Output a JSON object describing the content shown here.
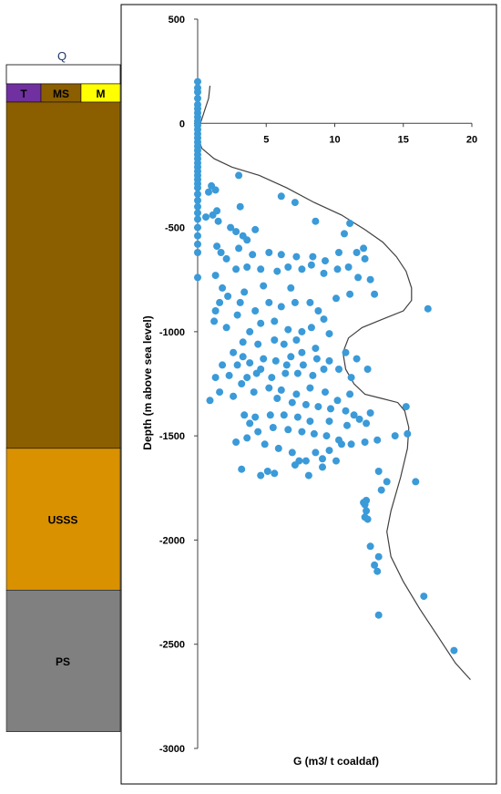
{
  "column": {
    "top_label": "Q",
    "thin_units": [
      {
        "label": "T",
        "color": "#7030A0"
      },
      {
        "label": "MS",
        "color": "#8B5E00"
      },
      {
        "label": "M",
        "color": "#FFFF00"
      }
    ],
    "units": [
      {
        "label": "",
        "color": "#8B5E00",
        "from_depth": 100,
        "to_depth": -1560
      },
      {
        "label": "USSS",
        "color": "#D99100",
        "from_depth": -1560,
        "to_depth": -2240
      },
      {
        "label": "PS",
        "color": "#808080",
        "from_depth": -2240,
        "to_depth": -2920
      }
    ]
  },
  "chart_data": {
    "type": "scatter",
    "title": "",
    "xlabel": "G (m3/ t coaldaf)",
    "ylabel": "Depth (m above sea level)",
    "xlim": [
      0,
      20
    ],
    "ylim": [
      -3000,
      500
    ],
    "x_ticks": [
      0,
      5,
      10,
      15,
      20
    ],
    "y_ticks": [
      500,
      0,
      -500,
      -1000,
      -1500,
      -2000,
      -2500,
      -3000
    ],
    "grid": false,
    "legend": "none",
    "marker_color": "#3B9AD8",
    "line_color": "#404040",
    "points": [
      [
        0,
        200
      ],
      [
        0,
        170
      ],
      [
        0,
        150
      ],
      [
        0,
        120
      ],
      [
        0,
        90
      ],
      [
        0,
        70
      ],
      [
        0,
        50
      ],
      [
        0,
        30
      ],
      [
        0,
        10
      ],
      [
        0,
        -10
      ],
      [
        0,
        -30
      ],
      [
        0,
        -50
      ],
      [
        0,
        -70
      ],
      [
        0,
        -90
      ],
      [
        0,
        -110
      ],
      [
        0,
        -130
      ],
      [
        0,
        -150
      ],
      [
        0,
        -170
      ],
      [
        0,
        -190
      ],
      [
        0,
        -210
      ],
      [
        0,
        -230
      ],
      [
        0,
        -250
      ],
      [
        0,
        -270
      ],
      [
        0,
        -290
      ],
      [
        0,
        -310
      ],
      [
        0,
        -340
      ],
      [
        0,
        -370
      ],
      [
        0,
        -400
      ],
      [
        0,
        -430
      ],
      [
        0,
        -460
      ],
      [
        0,
        -500
      ],
      [
        0,
        -540
      ],
      [
        0,
        -580
      ],
      [
        0,
        -620
      ],
      [
        0,
        -740
      ],
      [
        3,
        -250
      ],
      [
        6.1,
        -350
      ],
      [
        7.1,
        -380
      ],
      [
        8.6,
        -470
      ],
      [
        11.1,
        -480
      ],
      [
        10.7,
        -530
      ],
      [
        12.1,
        -600
      ],
      [
        11.6,
        -620
      ],
      [
        16.8,
        -890
      ],
      [
        15.2,
        -1360
      ],
      [
        15.3,
        -1490
      ],
      [
        14.4,
        -1500
      ],
      [
        13.2,
        -1670
      ],
      [
        13.8,
        -1720
      ],
      [
        15.9,
        -1720
      ],
      [
        13.4,
        -1760
      ],
      [
        12.3,
        -1810
      ],
      [
        12.1,
        -1820
      ],
      [
        12.2,
        -1830
      ],
      [
        12.3,
        -1860
      ],
      [
        12.2,
        -1890
      ],
      [
        12.4,
        -1900
      ],
      [
        12.6,
        -2030
      ],
      [
        13.2,
        -2080
      ],
      [
        12.9,
        -2120
      ],
      [
        13.1,
        -2150
      ],
      [
        16.5,
        -2270
      ],
      [
        13.2,
        -2360
      ],
      [
        18.7,
        -2530
      ],
      [
        1,
        -300
      ],
      [
        1.3,
        -320
      ],
      [
        0.8,
        -330
      ],
      [
        1.4,
        -420
      ],
      [
        1.1,
        -440
      ],
      [
        0.6,
        -450
      ],
      [
        1.5,
        -470
      ],
      [
        3.1,
        -400
      ],
      [
        2.4,
        -500
      ],
      [
        2.8,
        -520
      ],
      [
        3.3,
        -540
      ],
      [
        4.2,
        -510
      ],
      [
        3.6,
        -560
      ],
      [
        1.4,
        -590
      ],
      [
        1.7,
        -620
      ],
      [
        2.1,
        -650
      ],
      [
        3,
        -600
      ],
      [
        4,
        -630
      ],
      [
        5.2,
        -620
      ],
      [
        6.1,
        -630
      ],
      [
        7.2,
        -640
      ],
      [
        8.4,
        -640
      ],
      [
        9.3,
        -660
      ],
      [
        10.3,
        -620
      ],
      [
        12.2,
        -650
      ],
      [
        11.7,
        -740
      ],
      [
        12.6,
        -750
      ],
      [
        11,
        -690
      ],
      [
        10.2,
        -700
      ],
      [
        9.2,
        -720
      ],
      [
        8.3,
        -680
      ],
      [
        7.6,
        -700
      ],
      [
        6.6,
        -690
      ],
      [
        5.8,
        -710
      ],
      [
        4.6,
        -700
      ],
      [
        3.6,
        -690
      ],
      [
        2.8,
        -700
      ],
      [
        1.3,
        -730
      ],
      [
        1.8,
        -790
      ],
      [
        2.2,
        -830
      ],
      [
        1.6,
        -860
      ],
      [
        1.3,
        -900
      ],
      [
        1.2,
        -950
      ],
      [
        2.1,
        -980
      ],
      [
        2.9,
        -920
      ],
      [
        3.1,
        -860
      ],
      [
        4.2,
        -900
      ],
      [
        3.4,
        -810
      ],
      [
        4.8,
        -780
      ],
      [
        5.2,
        -860
      ],
      [
        6.1,
        -880
      ],
      [
        6.8,
        -790
      ],
      [
        7.1,
        -860
      ],
      [
        8.2,
        -860
      ],
      [
        8.8,
        -900
      ],
      [
        9.2,
        -940
      ],
      [
        10.1,
        -840
      ],
      [
        11.1,
        -820
      ],
      [
        12.9,
        -820
      ],
      [
        10.8,
        -1100
      ],
      [
        11.6,
        -1130
      ],
      [
        10.3,
        -1180
      ],
      [
        11.2,
        -1220
      ],
      [
        12.4,
        -1180
      ],
      [
        11.1,
        -1300
      ],
      [
        10.2,
        -1330
      ],
      [
        9.3,
        -1290
      ],
      [
        8.2,
        -1270
      ],
      [
        7.2,
        -1300
      ],
      [
        6.1,
        -1280
      ],
      [
        5.2,
        -1270
      ],
      [
        4.1,
        -1290
      ],
      [
        3.2,
        -1250
      ],
      [
        2.6,
        -1310
      ],
      [
        1.6,
        -1290
      ],
      [
        0.9,
        -1330
      ],
      [
        1.3,
        -1220
      ],
      [
        1.8,
        -1160
      ],
      [
        2.6,
        -1100
      ],
      [
        3.3,
        -1050
      ],
      [
        3.8,
        -1000
      ],
      [
        4.6,
        -960
      ],
      [
        5.6,
        -950
      ],
      [
        6.6,
        -990
      ],
      [
        7.6,
        -1000
      ],
      [
        8.3,
        -980
      ],
      [
        9.6,
        -1010
      ],
      [
        8.6,
        -1080
      ],
      [
        7.6,
        -1100
      ],
      [
        6.8,
        -1120
      ],
      [
        5.7,
        -1140
      ],
      [
        4.8,
        -1130
      ],
      [
        3.8,
        -1150
      ],
      [
        2.9,
        -1160
      ],
      [
        4.3,
        -1200
      ],
      [
        5.4,
        -1220
      ],
      [
        6.4,
        -1200
      ],
      [
        7.3,
        -1200
      ],
      [
        8.4,
        -1210
      ],
      [
        9.2,
        -1180
      ],
      [
        9.6,
        -1140
      ],
      [
        5.6,
        -1040
      ],
      [
        6.3,
        -1060
      ],
      [
        7.2,
        -1040
      ],
      [
        4.4,
        -1060
      ],
      [
        3.3,
        -1120
      ],
      [
        4.6,
        -1180
      ],
      [
        6.5,
        -1160
      ],
      [
        8.7,
        -1130
      ],
      [
        7.7,
        -1160
      ],
      [
        2.3,
        -1210
      ],
      [
        3.6,
        -1220
      ],
      [
        5.8,
        -1320
      ],
      [
        6.9,
        -1340
      ],
      [
        7.9,
        -1350
      ],
      [
        8.8,
        -1360
      ],
      [
        9.7,
        -1370
      ],
      [
        10.8,
        -1380
      ],
      [
        11.4,
        -1400
      ],
      [
        12.6,
        -1390
      ],
      [
        11.8,
        -1420
      ],
      [
        12.3,
        -1440
      ],
      [
        10.9,
        -1450
      ],
      [
        9.6,
        -1430
      ],
      [
        8.2,
        -1430
      ],
      [
        7.3,
        -1410
      ],
      [
        6.3,
        -1400
      ],
      [
        5.3,
        -1400
      ],
      [
        4.2,
        -1410
      ],
      [
        3.4,
        -1400
      ],
      [
        3.8,
        -1440
      ],
      [
        4.4,
        -1480
      ],
      [
        5.5,
        -1460
      ],
      [
        6.6,
        -1470
      ],
      [
        7.6,
        -1480
      ],
      [
        8.5,
        -1490
      ],
      [
        9.4,
        -1500
      ],
      [
        10.3,
        -1520
      ],
      [
        11.2,
        -1540
      ],
      [
        12.2,
        -1530
      ],
      [
        13.1,
        -1520
      ],
      [
        9.6,
        -1570
      ],
      [
        9.1,
        -1610
      ],
      [
        10.1,
        -1620
      ],
      [
        7.9,
        -1620
      ],
      [
        7.1,
        -1640
      ],
      [
        5.6,
        -1680
      ],
      [
        5.1,
        -1670
      ],
      [
        4.6,
        -1690
      ],
      [
        3.2,
        -1660
      ],
      [
        2.8,
        -1530
      ],
      [
        3.6,
        -1510
      ],
      [
        4.9,
        -1540
      ],
      [
        5.9,
        -1560
      ],
      [
        6.9,
        -1580
      ],
      [
        8.1,
        -1690
      ],
      [
        7.4,
        -1620
      ],
      [
        9.1,
        -1650
      ],
      [
        8.6,
        -1580
      ],
      [
        10.5,
        -1540
      ]
    ],
    "trend_curve": [
      [
        0.9,
        180
      ],
      [
        0.8,
        120
      ],
      [
        0.5,
        60
      ],
      [
        0.2,
        0
      ],
      [
        0,
        -60
      ],
      [
        0.3,
        -120
      ],
      [
        1.2,
        -170
      ],
      [
        2.5,
        -210
      ],
      [
        4.5,
        -250
      ],
      [
        6.5,
        -310
      ],
      [
        8.5,
        -380
      ],
      [
        10.5,
        -440
      ],
      [
        12.2,
        -510
      ],
      [
        13.5,
        -570
      ],
      [
        14.5,
        -640
      ],
      [
        15.2,
        -710
      ],
      [
        15.6,
        -790
      ],
      [
        15.6,
        -850
      ],
      [
        15,
        -900
      ],
      [
        13.5,
        -940
      ],
      [
        12,
        -980
      ],
      [
        11,
        -1030
      ],
      [
        10.6,
        -1100
      ],
      [
        10.8,
        -1180
      ],
      [
        11.4,
        -1250
      ],
      [
        12.2,
        -1300
      ],
      [
        13.4,
        -1320
      ],
      [
        14.6,
        -1340
      ],
      [
        15.1,
        -1380
      ],
      [
        15.4,
        -1460
      ],
      [
        15.3,
        -1560
      ],
      [
        14.8,
        -1700
      ],
      [
        14.1,
        -1860
      ],
      [
        13.8,
        -1960
      ],
      [
        14.1,
        -2080
      ],
      [
        15,
        -2200
      ],
      [
        16.2,
        -2330
      ],
      [
        17.5,
        -2460
      ],
      [
        18.8,
        -2590
      ],
      [
        19.9,
        -2670
      ]
    ]
  }
}
